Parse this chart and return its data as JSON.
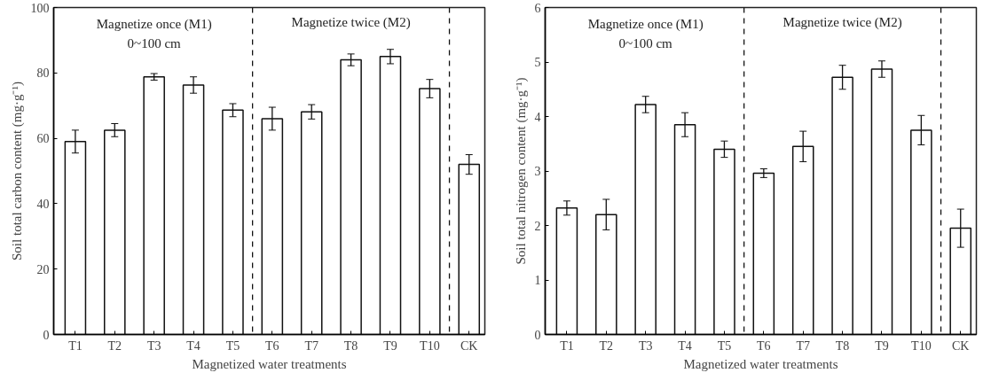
{
  "chart_data": [
    {
      "type": "bar",
      "ylabel": "Soil total carbon content (mg·g⁻¹)",
      "xlabel": "Magnetized water treatments",
      "categories": [
        "T1",
        "T2",
        "T3",
        "T4",
        "T5",
        "T6",
        "T7",
        "T8",
        "T9",
        "T10",
        "CK"
      ],
      "values": [
        59,
        62.5,
        78.8,
        76.3,
        68.6,
        66,
        68.1,
        84,
        85,
        75.2,
        52
      ],
      "errors": [
        3.5,
        2,
        1,
        2.5,
        2,
        3.5,
        2.2,
        1.8,
        2.2,
        2.8,
        3
      ],
      "color": "#ffffff",
      "ylim": [
        0,
        100
      ],
      "yticks": [
        0,
        20,
        40,
        60,
        80,
        100
      ],
      "annotations": [
        "Magnetize once (M1)",
        "0~100 cm",
        "Magnetize twice (M2)"
      ],
      "grid": false
    },
    {
      "type": "bar",
      "ylabel": "Soil total nitrogen content (mg·g⁻¹)",
      "xlabel": "Magnetized water treatments",
      "categories": [
        "T1",
        "T2",
        "T3",
        "T4",
        "T5",
        "T6",
        "T7",
        "T8",
        "T9",
        "T10",
        "CK"
      ],
      "values": [
        2.32,
        2.2,
        4.22,
        3.85,
        3.4,
        2.96,
        3.45,
        4.72,
        4.87,
        3.75,
        1.95
      ],
      "errors": [
        0.13,
        0.28,
        0.15,
        0.22,
        0.15,
        0.08,
        0.28,
        0.22,
        0.15,
        0.27,
        0.35
      ],
      "color": "#ffffff",
      "ylim": [
        0,
        6
      ],
      "yticks": [
        0,
        1,
        2,
        3,
        4,
        5,
        6
      ],
      "annotations": [
        "Magnetize once (M1)",
        "0~100 cm",
        "Magnetize twice (M2)"
      ],
      "grid": false
    }
  ]
}
